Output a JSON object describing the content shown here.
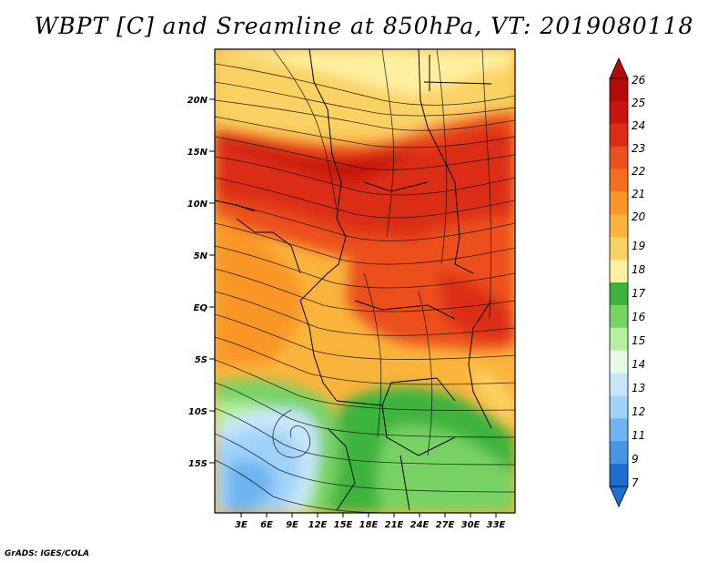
{
  "title": "WBPT [C] and Sreamline at 850hPa, VT: 2019080118",
  "credit": "GrADS: IGES/COLA",
  "map": {
    "lat_labels": [
      "20N",
      "15N",
      "10N",
      "5N",
      "EQ",
      "5S",
      "10S",
      "15S"
    ],
    "lon_labels": [
      "3E",
      "6E",
      "9E",
      "12E",
      "15E",
      "18E",
      "21E",
      "24E",
      "27E",
      "30E",
      "33E"
    ],
    "variable": "WBPT",
    "units": "C",
    "level": "850hPa",
    "valid_time": "2019080118"
  },
  "colorbar": {
    "labels": [
      "26",
      "25",
      "24",
      "23",
      "22",
      "21",
      "20",
      "19",
      "18",
      "17",
      "16",
      "15",
      "14",
      "13",
      "12",
      "11",
      "9",
      "7"
    ],
    "colors": [
      "#b40a0a",
      "#c8150f",
      "#dc2d14",
      "#ec501e",
      "#f56e1e",
      "#fa9628",
      "#fab43c",
      "#fad264",
      "#fff0a0",
      "#3cb43c",
      "#78d264",
      "#b4f0a0",
      "#e6fae6",
      "#c8e6fa",
      "#a0d2fa",
      "#6eb4f0",
      "#4696e6",
      "#1e6ed2"
    ]
  }
}
